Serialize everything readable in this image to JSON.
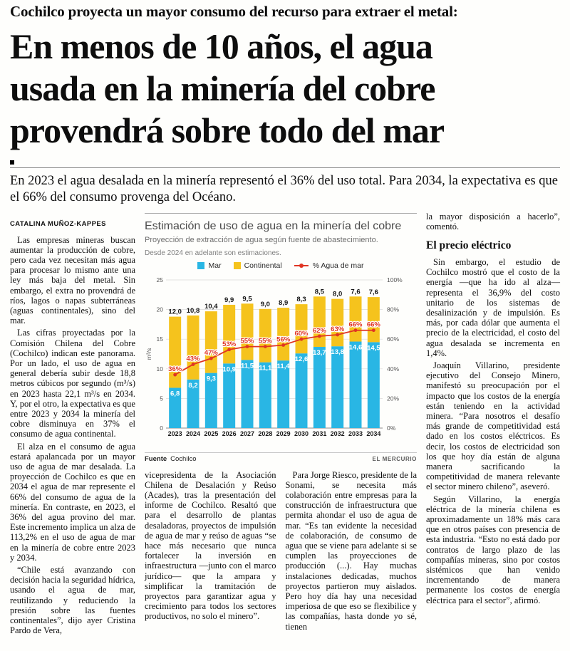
{
  "article": {
    "kicker": "Cochilco proyecta un mayor consumo del recurso para extraer el metal:",
    "headline_lines": [
      "En menos de 10 años, el agua",
      "usada en la minería del cobre",
      "provendrá sobre todo del mar"
    ],
    "deck": "En 2023 el agua desalada en la minería representó el 36% del uso total. Para 2034, la expectativa es que el 66% del consumo provenga del Océano.",
    "byline": "CATALINA MUÑOZ-KAPPES",
    "col1": [
      "Las empresas mineras buscan aumentar la producción de cobre, pero cada vez necesitan más agua para procesar lo mismo ante una ley más baja del metal. Sin embargo, el extra no provendrá de ríos, lagos o napas subterráneas (aguas continentales), sino del mar.",
      "Las cifras proyectadas por la Comisión Chilena del Cobre (Cochilco) indican este panorama. Por un lado, el uso de agua en general debería subir desde 18,8 metros cúbicos por segundo (m³/s) en 2023 hasta 22,1 m³/s en 2034. Y, por el otro, la expectativa es que entre 2023 y 2034 la minería del cobre disminuya en 37% el consumo de agua continental.",
      "El alza en el consumo de agua estará apalancada por un mayor uso de agua de mar desalada. La proyección de Cochilco es que en 2034 el agua de mar represente el 66% del consumo de agua de la minería. En contraste, en 2023, el 36% del agua provino del mar. Este incremento implica un alza de 113,2% en el uso de agua de mar en la minería de cobre entre 2023 y 2034.",
      "“Chile está avanzando con decisión hacia la seguridad hídrica, usando el agua de mar, reutilizando y reduciendo la presión sobre las fuentes continentales”, dijo ayer Cristina Pardo de Vera,"
    ],
    "col2": [
      "vicepresidenta de la Asociación Chilena de Desalación y Reúso (Acades), tras la presentación del informe de Cochilco. Resaltó que para el desarrollo de plantas desaladoras, proyectos de impulsión de agua de mar y reúso de aguas “se hace más necesario que nunca fortalecer la inversión en infraestructura —junto con el marco jurídico— que la ampara y simplificar la tramitación de proyectos para garantizar agua y crecimiento para todos los sectores productivos, no solo el minero”."
    ],
    "col3": [
      "Para Jorge Riesco, presidente de la Sonami, se necesita más colaboración entre empresas para la construcción de infraestructura que permita ahondar el uso de agua de mar. “Es tan evidente la necesidad de colaboración, de consumo de agua que se viene para adelante si se cumplen las proyecciones de producción (...). Hay muchas instalaciones dedicadas, muchos proyectos partieron muy aislados. Pero hoy día hay una necesidad imperiosa de que eso se flexibilice y las compañías, hasta donde yo sé, tienen"
    ],
    "col4_lead": "la mayor disposición a hacerlo”, comentó.",
    "col4_heading": "El precio eléctrico",
    "col4": [
      "Sin embargo, el estudio de Cochilco mostró que el costo de la energía —que ha ido al alza— representa el 36,9% del costo unitario de los sistemas de desalinización y de impulsión. Es más, por cada dólar que aumenta el precio de la electricidad, el costo del agua desalada se incrementa en 1,4%.",
      "Joaquín Villarino, presidente ejecutivo del Consejo Minero, manifestó su preocupación por el impacto que los costos de la energía están teniendo en la actividad minera. “Para nosotros el desafío más grande de competitividad está dado en los costos eléctricos. Es decir, los costos de electricidad son los que hoy día están de alguna manera sacrificando la competitividad de manera relevante el sector minero chileno”, aseveró.",
      "Según Villarino, la energía eléctrica de la minería chilena es aproximadamente un 18% más cara que en otros países con presencia de esta industria. “Esto no está dado por contratos de largo plazo de las compañías mineras, sino por costos sistémicos que han venido incrementando de manera permanente los costos de energía eléctrica para el sector”, afirmó."
    ]
  },
  "chart": {
    "source_label": "Fuente",
    "source": "Cochilco",
    "credit": "EL MERCURIO"
  },
  "chart_data": {
    "type": "bar",
    "title": "Estimación de uso de agua en la minería del cobre",
    "subtitle": "Proyección de extracción de agua según fuente de abastecimiento.",
    "note": "Desde 2024 en adelante son estimaciones.",
    "categories": [
      "2023",
      "2024",
      "2025",
      "2026",
      "2027",
      "2028",
      "2029",
      "2030",
      "2031",
      "2032",
      "2033",
      "2034"
    ],
    "series": [
      {
        "name": "Mar",
        "color": "#29B6E4",
        "values": [
          6.8,
          8.2,
          9.3,
          10.9,
          11.5,
          11.1,
          11.4,
          12.6,
          13.7,
          13.8,
          14.6,
          14.5
        ]
      },
      {
        "name": "Continental",
        "color": "#F5C31D",
        "values": [
          12.0,
          10.8,
          10.4,
          9.9,
          9.5,
          9.0,
          8.9,
          8.3,
          8.5,
          8.0,
          7.6,
          7.6
        ]
      }
    ],
    "line_series": {
      "name": "% Agua de mar",
      "color": "#E03423",
      "values": [
        36,
        43,
        47,
        53,
        55,
        55,
        56,
        60,
        62,
        63,
        66,
        66
      ]
    },
    "stacked": true,
    "xlabel": "",
    "ylabel": "m³/s",
    "ylim": [
      0,
      25
    ],
    "yticks": [
      0,
      5,
      10,
      15,
      20,
      25
    ],
    "y2lim": [
      0,
      100
    ],
    "y2ticks": [
      "0%",
      "20%",
      "40%",
      "60%",
      "80%",
      "100%"
    ],
    "grid": true,
    "legend_position": "top"
  }
}
